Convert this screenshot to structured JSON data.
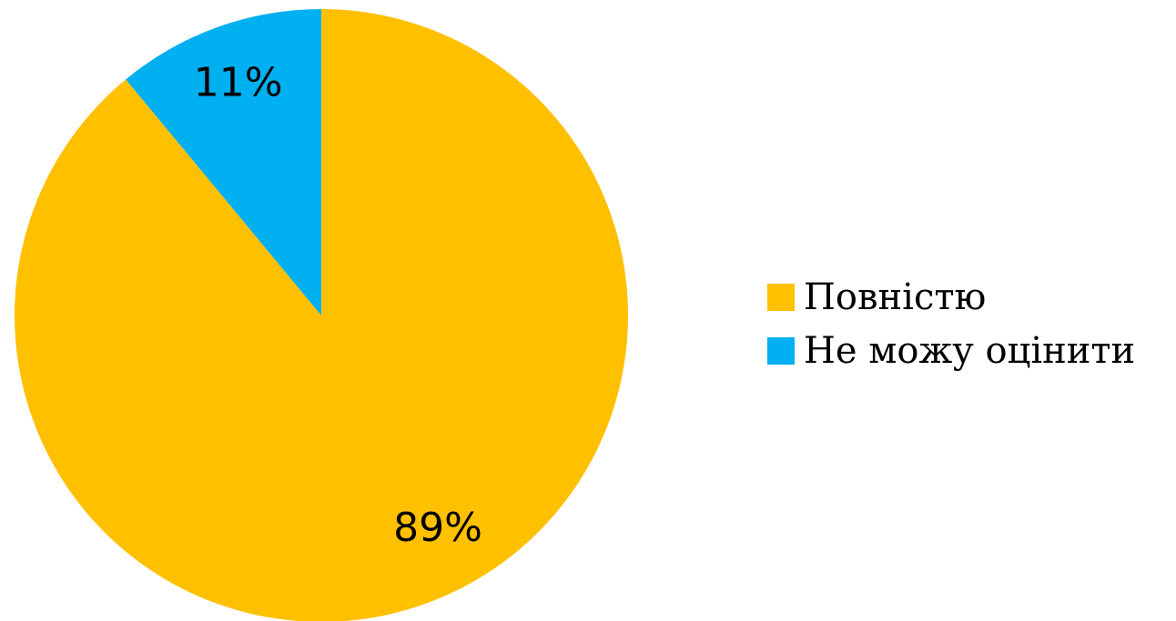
{
  "chart_data": {
    "type": "pie",
    "title": "",
    "categories": [
      "Повністю",
      "Не можу оцінити"
    ],
    "values": [
      89,
      11
    ],
    "data_labels": [
      "89%",
      "11%"
    ],
    "colors": [
      "#FFC000",
      "#00B0F0"
    ],
    "start_angle": "12 o'clock",
    "direction": "clockwise",
    "legend": {
      "placement": "right",
      "items": [
        {
          "label": "Повністю",
          "color": "#FFC000"
        },
        {
          "label": "Не можу оцінити",
          "color": "#00B0F0"
        }
      ]
    }
  }
}
